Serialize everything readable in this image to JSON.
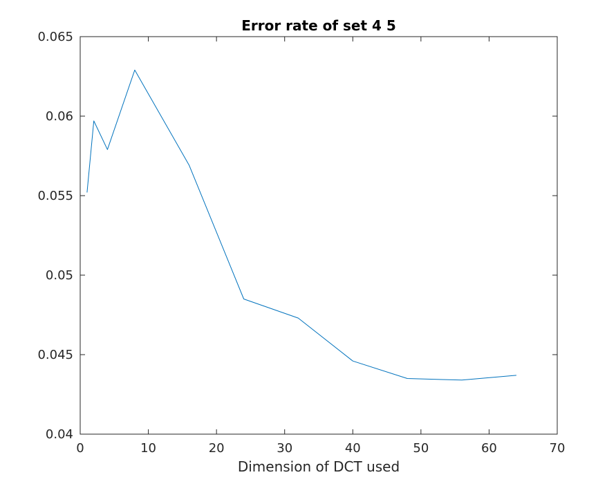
{
  "chart_data": {
    "type": "line",
    "title": "Error rate of set 4 5",
    "xlabel": "Dimension of DCT used",
    "ylabel": "",
    "xlim": [
      0,
      70
    ],
    "ylim": [
      0.04,
      0.065
    ],
    "x_ticks": [
      0,
      10,
      20,
      30,
      40,
      50,
      60,
      70
    ],
    "x_tick_labels": [
      "0",
      "10",
      "20",
      "30",
      "40",
      "50",
      "60",
      "70"
    ],
    "y_ticks": [
      0.04,
      0.045,
      0.05,
      0.055,
      0.06,
      0.065
    ],
    "y_tick_labels": [
      "0.04",
      "0.045",
      "0.05",
      "0.055",
      "0.06",
      "0.065"
    ],
    "grid": false,
    "series": [
      {
        "name": "error rate",
        "color": "#0072BD",
        "x": [
          1,
          2,
          4,
          8,
          16,
          24,
          32,
          40,
          48,
          56,
          64
        ],
        "y": [
          0.0552,
          0.0597,
          0.0579,
          0.0629,
          0.0569,
          0.0485,
          0.0473,
          0.0446,
          0.0435,
          0.0434,
          0.0437
        ]
      }
    ]
  }
}
